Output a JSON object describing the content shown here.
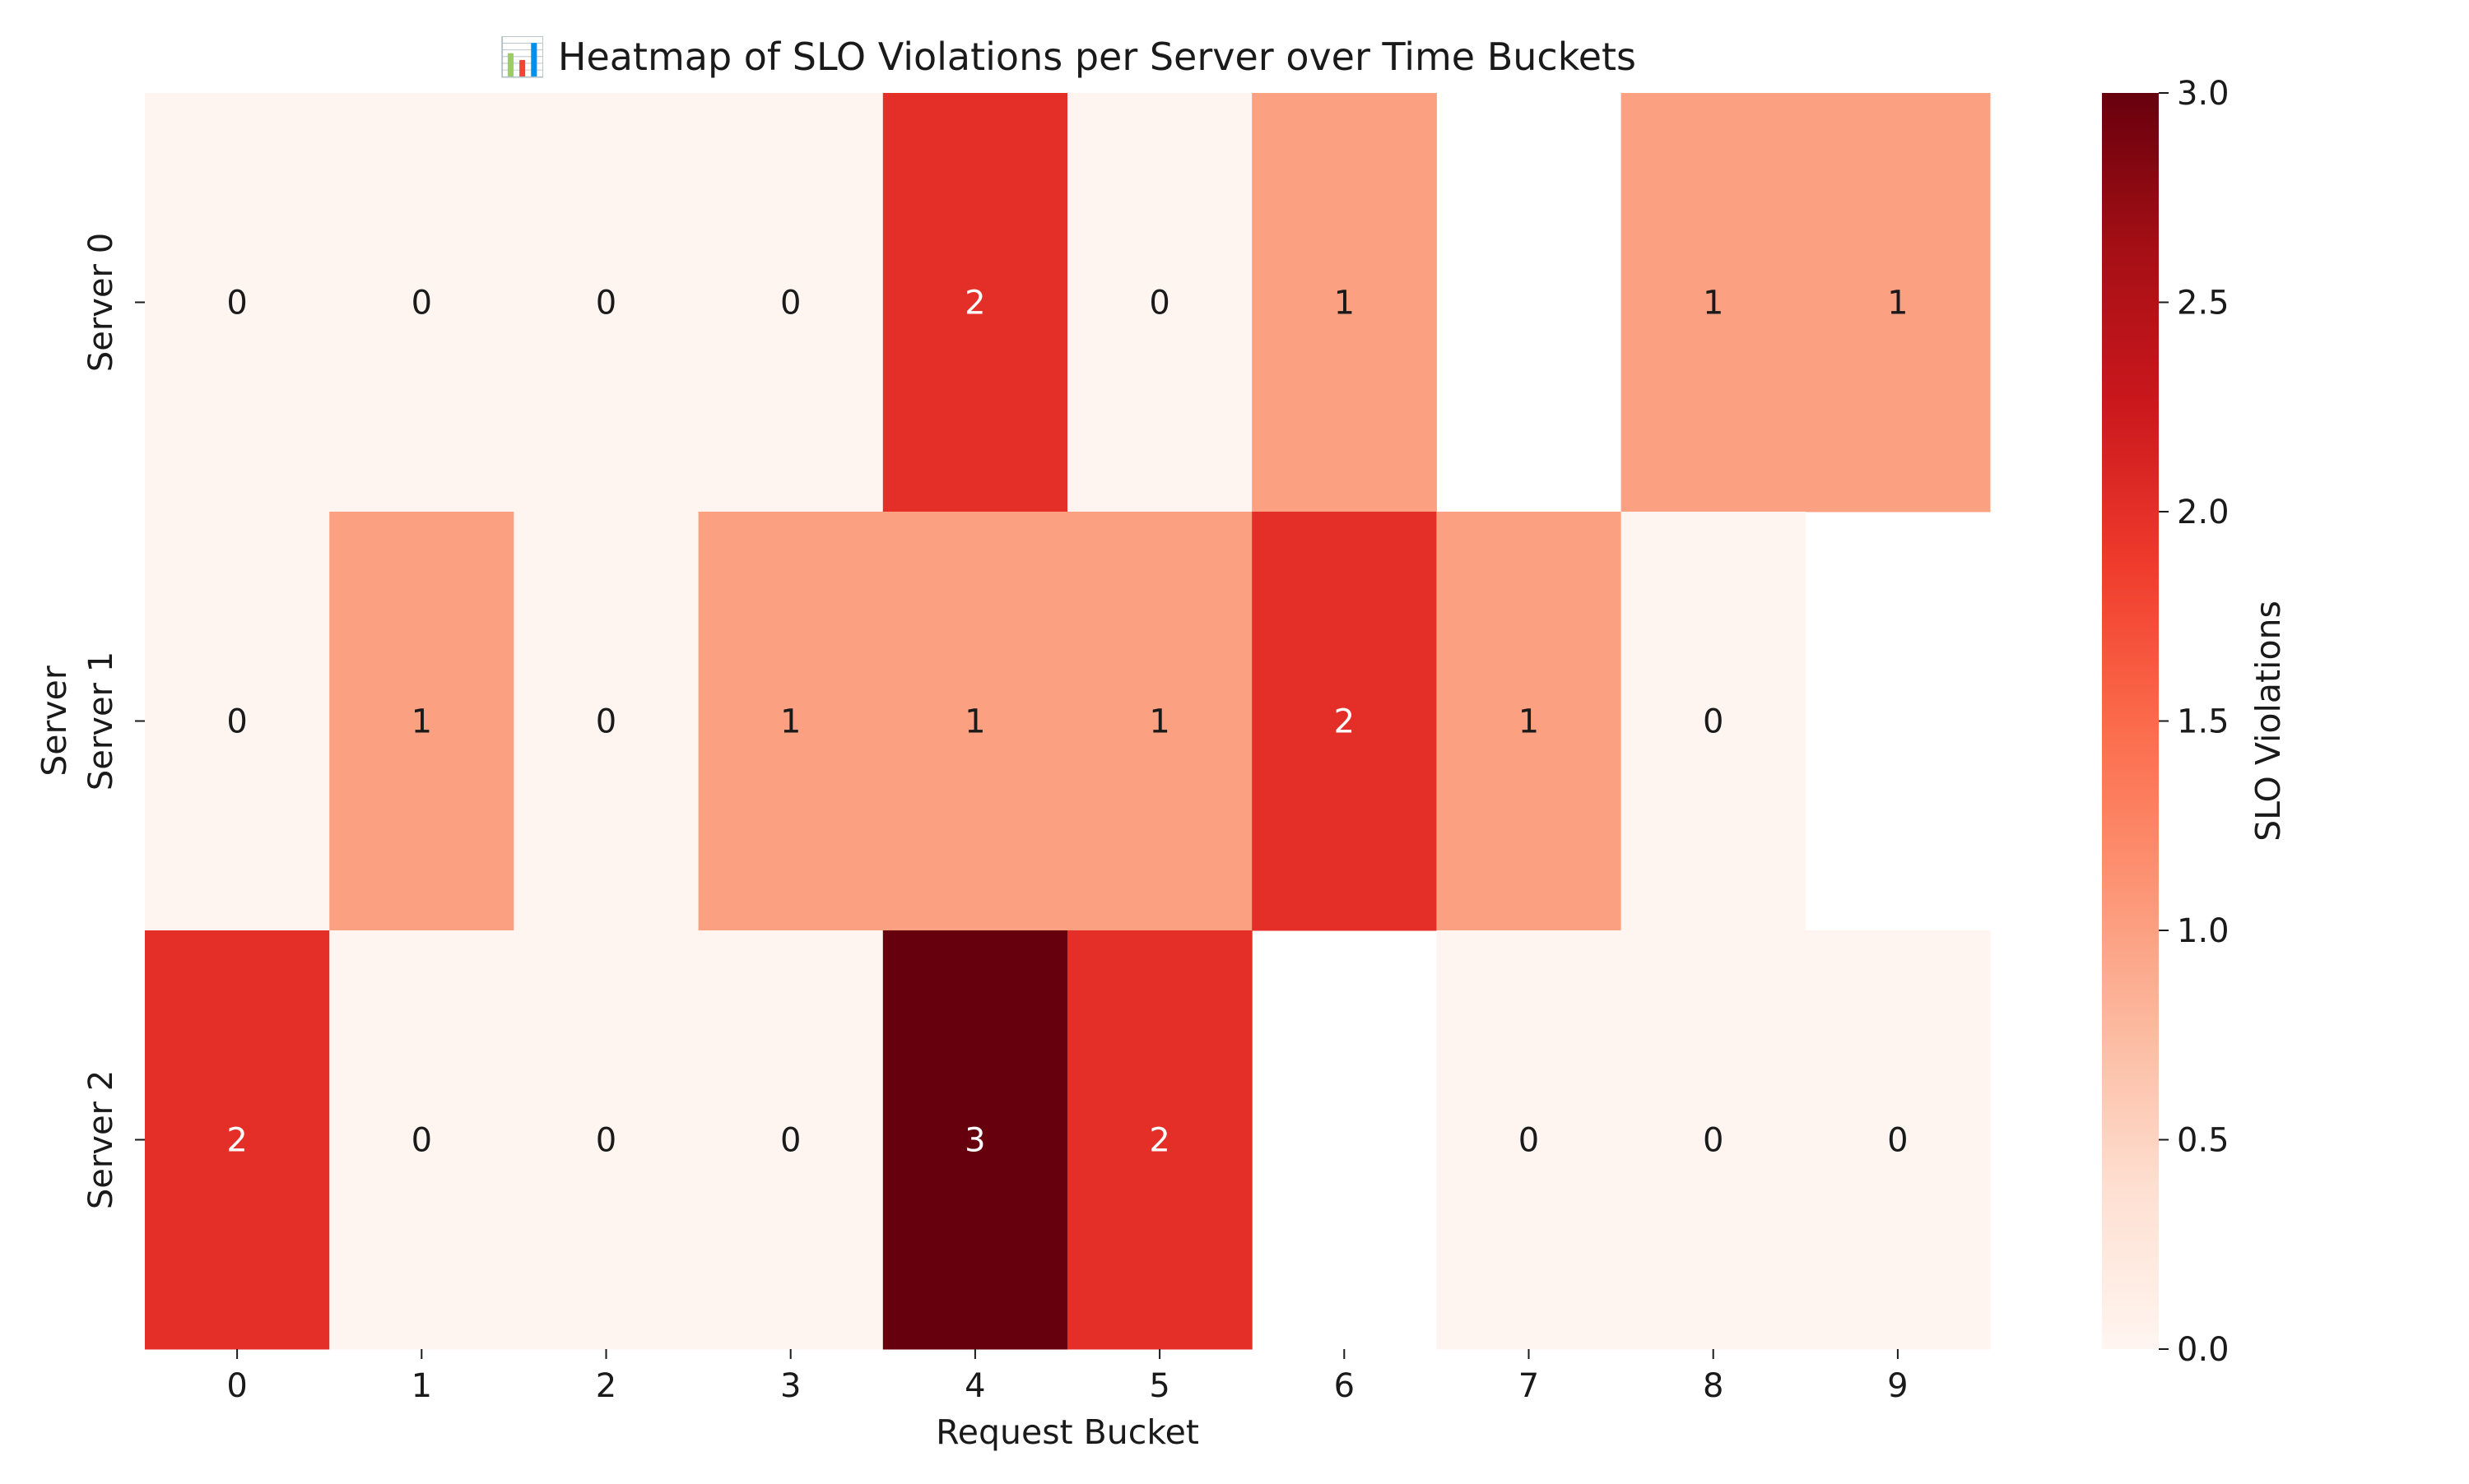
{
  "chart_data": {
    "type": "heatmap",
    "title": "📊 Heatmap of SLO Violations per Server over Time Buckets",
    "xlabel": "Request Bucket",
    "ylabel": "Server",
    "x_categories": [
      "0",
      "1",
      "2",
      "3",
      "4",
      "5",
      "6",
      "7",
      "8",
      "9"
    ],
    "y_categories": [
      "Server 0",
      "Server 1",
      "Server 2"
    ],
    "values": [
      [
        0,
        0,
        0,
        0,
        2,
        0,
        1,
        null,
        1,
        1
      ],
      [
        0,
        1,
        0,
        1,
        1,
        1,
        2,
        1,
        0,
        null
      ],
      [
        2,
        0,
        0,
        0,
        3,
        2,
        null,
        0,
        0,
        0
      ]
    ],
    "colorbar": {
      "label": "SLO Violations",
      "range": [
        0.0,
        3.0
      ],
      "ticks": [
        "0.0",
        "0.5",
        "1.0",
        "1.5",
        "2.0",
        "2.5",
        "3.0"
      ],
      "colormap": [
        "#fff5f0",
        "#fee0d2",
        "#fcbba1",
        "#fc9272",
        "#fb6a4a",
        "#ef3b2c",
        "#cb181d",
        "#a50f15",
        "#67000d"
      ]
    },
    "annotations": true,
    "grid": false
  }
}
